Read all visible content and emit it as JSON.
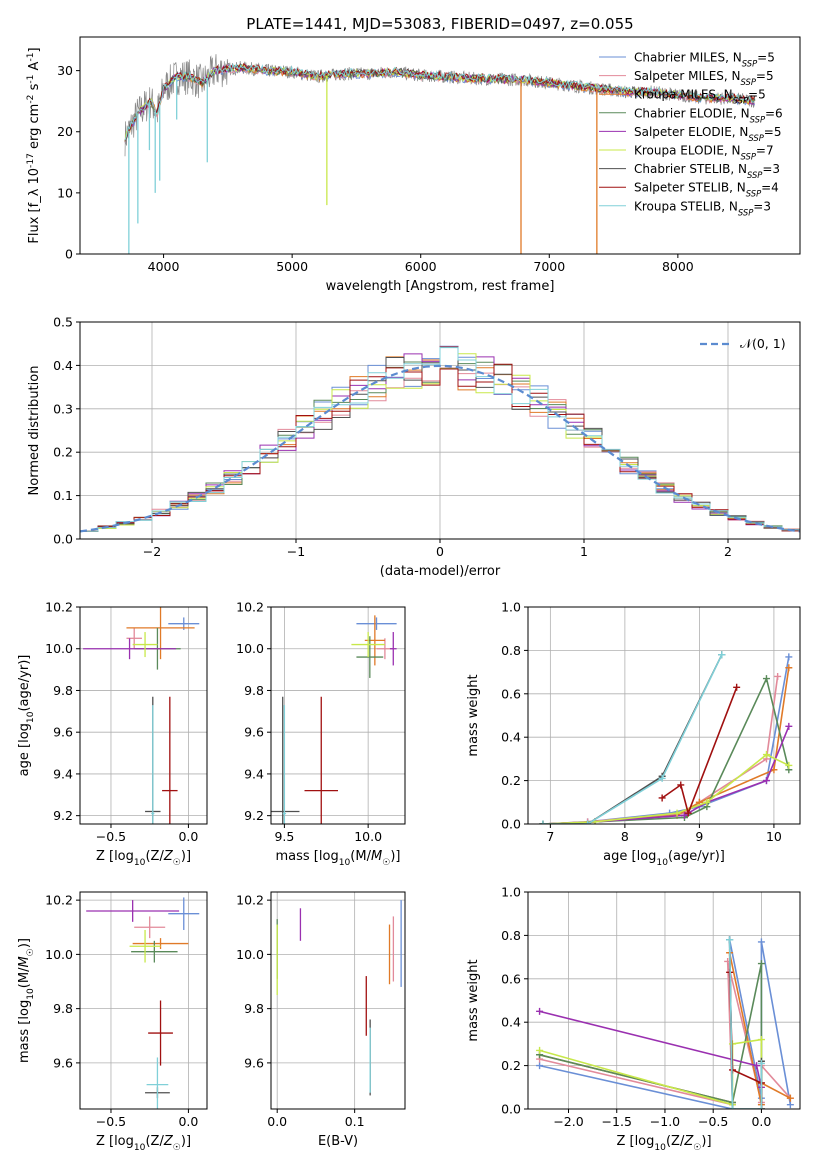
{
  "colors": [
    "#6a8fd6",
    "#e28a9a",
    "#e07a28",
    "#5a8a5a",
    "#9a30b0",
    "#c8e84a",
    "#505050",
    "#a01010",
    "#80d0d8"
  ],
  "chart_data": [
    {
      "type": "line",
      "title": "PLATE=1441, MJD=53083, FIBERID=0497, z=0.055",
      "xlabel": "wavelength [Angstrom, rest frame]",
      "ylabel": "Flux [f_λ 10^-17 erg cm^-2 s^-1 A^-1]",
      "xlim": [
        3350,
        8950
      ],
      "ylim": [
        0,
        35.5
      ],
      "xticks": [
        4000,
        5000,
        6000,
        7000,
        8000
      ],
      "yticks": [
        0,
        10,
        20,
        30
      ],
      "legend": "top-right",
      "series": [
        {
          "name": "Chabrier MILES, N_SSP=5"
        },
        {
          "name": "Salpeter MILES, N_SSP=5"
        },
        {
          "name": "Kroupa MILES, N_SSP=5"
        },
        {
          "name": "Chabrier ELODIE, N_SSP=6"
        },
        {
          "name": "Salpeter ELODIE, N_SSP=5"
        },
        {
          "name": "Kroupa ELODIE, N_SSP=7"
        },
        {
          "name": "Chabrier STELIB, N_SSP=3"
        },
        {
          "name": "Salpeter STELIB, N_SSP=4"
        },
        {
          "name": "Kroupa STELIB, N_SSP=3"
        }
      ],
      "spectrum_shape": [
        [
          3700,
          19
        ],
        [
          3800,
          23
        ],
        [
          3900,
          25
        ],
        [
          3950,
          23
        ],
        [
          4000,
          27
        ],
        [
          4100,
          29
        ],
        [
          4200,
          29
        ],
        [
          4300,
          28
        ],
        [
          4400,
          30
        ],
        [
          4600,
          30.5
        ],
        [
          4800,
          30
        ],
        [
          5000,
          29.8
        ],
        [
          5200,
          29
        ],
        [
          5400,
          29.5
        ],
        [
          5600,
          29.5
        ],
        [
          5800,
          29.8
        ],
        [
          6000,
          29.2
        ],
        [
          6200,
          29
        ],
        [
          6400,
          28.7
        ],
        [
          6600,
          28.6
        ],
        [
          6800,
          28.5
        ],
        [
          7000,
          28
        ],
        [
          7200,
          27.5
        ],
        [
          7400,
          27
        ],
        [
          7600,
          26.5
        ],
        [
          7800,
          26.5
        ],
        [
          8000,
          26
        ],
        [
          8200,
          25.5
        ],
        [
          8400,
          25.5
        ],
        [
          8600,
          25
        ]
      ],
      "absorption_lines": [
        [
          3730,
          0
        ],
        [
          3800,
          5
        ],
        [
          3890,
          17
        ],
        [
          3935,
          10
        ],
        [
          3970,
          12
        ],
        [
          4102,
          22
        ],
        [
          4340,
          15
        ],
        [
          5270,
          8
        ],
        [
          6780,
          0
        ],
        [
          7370,
          0
        ]
      ]
    },
    {
      "type": "step",
      "xlabel": "(data-model)/error",
      "ylabel": "Normed distribution",
      "xlim": [
        -2.5,
        2.5
      ],
      "ylim": [
        0,
        0.5
      ],
      "xticks": [
        -2,
        -1,
        0,
        1,
        2
      ],
      "yticks": [
        0.0,
        0.1,
        0.2,
        0.3,
        0.4,
        0.5
      ],
      "legend": "top-right",
      "reference_label": "𝒩(0, 1)",
      "bin_width": 0.125
    },
    {
      "type": "scatter",
      "xlabel": "Z [log10(Z/Z☉)]",
      "ylabel": "age  [log10(age/yr)]",
      "xlim": [
        -0.7,
        0.12
      ],
      "ylim": [
        9.16,
        10.2
      ],
      "xticks": [
        -0.5,
        0.0
      ],
      "yticks": [
        9.2,
        9.4,
        9.6,
        9.8,
        10.0,
        10.2
      ],
      "points": [
        {
          "x": -0.03,
          "y": 10.12,
          "xerr": 0.1,
          "yerr": 0.03
        },
        {
          "x": -0.35,
          "y": 10.05,
          "xerr": 0.05,
          "yerr": 0.05
        },
        {
          "x": -0.18,
          "y": 10.1,
          "xerr": 0.22,
          "yerr": 0.15
        },
        {
          "x": -0.2,
          "y": 10.0,
          "xerr": 0.15,
          "yerr": 0.1
        },
        {
          "x": -0.38,
          "y": 10.0,
          "xerr": 0.3,
          "yerr": 0.05
        },
        {
          "x": -0.28,
          "y": 10.02,
          "xerr": 0.08,
          "yerr": 0.06
        },
        {
          "x": -0.23,
          "y": 9.22,
          "xerr": 0.05,
          "yerr": 0.55
        },
        {
          "x": -0.12,
          "y": 9.32,
          "xerr": 0.05,
          "yerr": 0.45
        },
        {
          "x": -0.23,
          "y": 9.21,
          "xerr": 0.01,
          "yerr": 0.52
        }
      ]
    },
    {
      "type": "scatter",
      "xlabel": "mass [log10(M/M☉)]",
      "ylabel": "",
      "xlim": [
        9.42,
        10.22
      ],
      "ylim": [
        9.16,
        10.2
      ],
      "xticks": [
        9.5,
        10.0
      ],
      "yticks": [
        9.2,
        9.4,
        9.6,
        9.8,
        10.0,
        10.2
      ],
      "points": [
        {
          "x": 10.05,
          "y": 10.12,
          "xerr": 0.12,
          "yerr": 0.03
        },
        {
          "x": 10.1,
          "y": 10.0,
          "xerr": 0.05,
          "yerr": 0.05
        },
        {
          "x": 10.04,
          "y": 10.04,
          "xerr": 0.06,
          "yerr": 0.12
        },
        {
          "x": 10.01,
          "y": 9.96,
          "xerr": 0.08,
          "yerr": 0.1
        },
        {
          "x": 10.15,
          "y": 10.0,
          "xerr": 0.02,
          "yerr": 0.08
        },
        {
          "x": 10.0,
          "y": 10.02,
          "xerr": 0.1,
          "yerr": 0.06
        },
        {
          "x": 9.49,
          "y": 9.22,
          "xerr": 0.1,
          "yerr": 0.55
        },
        {
          "x": 9.72,
          "y": 9.32,
          "xerr": 0.1,
          "yerr": 0.45
        },
        {
          "x": 9.5,
          "y": 9.21,
          "xerr": 0.01,
          "yerr": 0.52
        }
      ]
    },
    {
      "type": "line",
      "xlabel": "age  [log10(age/yr)]",
      "ylabel": "mass weight",
      "xlim": [
        6.7,
        10.35
      ],
      "ylim": [
        0,
        1.0
      ],
      "xticks": [
        7,
        8,
        9,
        10
      ],
      "yticks": [
        0.0,
        0.2,
        0.4,
        0.6,
        0.8,
        1.0
      ],
      "series": [
        {
          "x": [
            6.9,
            7.5,
            8.6,
            9.0,
            9.9,
            10.2
          ],
          "y": [
            0.0,
            0.01,
            0.05,
            0.08,
            0.2,
            0.77
          ]
        },
        {
          "x": [
            6.9,
            7.5,
            8.8,
            9.0,
            9.9,
            10.05
          ],
          "y": [
            0.0,
            0.01,
            0.05,
            0.1,
            0.3,
            0.68
          ]
        },
        {
          "x": [
            6.9,
            7.6,
            8.7,
            9.0,
            10.0,
            10.2
          ],
          "y": [
            0.0,
            0.01,
            0.04,
            0.1,
            0.25,
            0.72
          ]
        },
        {
          "x": [
            6.9,
            7.6,
            8.8,
            9.1,
            9.9,
            10.2
          ],
          "y": [
            0.0,
            0.01,
            0.03,
            0.08,
            0.67,
            0.25
          ]
        },
        {
          "x": [
            6.9,
            7.6,
            8.8,
            9.1,
            9.9,
            10.2
          ],
          "y": [
            0.0,
            0.01,
            0.04,
            0.1,
            0.2,
            0.45
          ]
        },
        {
          "x": [
            6.9,
            7.6,
            8.7,
            9.1,
            9.9,
            10.2
          ],
          "y": [
            0.0,
            0.01,
            0.05,
            0.1,
            0.32,
            0.27
          ]
        },
        {
          "x": [
            6.9,
            7.5,
            8.5,
            9.3
          ],
          "y": [
            0.0,
            0.0,
            0.22,
            0.78
          ]
        },
        {
          "x": [
            8.5,
            8.75,
            8.85,
            9.5
          ],
          "y": [
            0.12,
            0.18,
            0.05,
            0.63
          ]
        },
        {
          "x": [
            6.9,
            7.5,
            8.5,
            9.3
          ],
          "y": [
            0.0,
            0.0,
            0.21,
            0.78
          ]
        }
      ]
    },
    {
      "type": "scatter",
      "xlabel": "Z [log10(Z/Z☉)]",
      "ylabel": "mass [log10(M/M☉)]",
      "xlim": [
        -0.7,
        0.12
      ],
      "ylim": [
        9.43,
        10.23
      ],
      "xticks": [
        -0.5,
        0.0
      ],
      "yticks": [
        9.6,
        9.8,
        10.0,
        10.2
      ],
      "points": [
        {
          "x": -0.03,
          "y": 10.15,
          "xerr": 0.1,
          "yerr": 0.06
        },
        {
          "x": -0.25,
          "y": 10.1,
          "xerr": 0.1,
          "yerr": 0.04
        },
        {
          "x": -0.18,
          "y": 10.04,
          "xerr": 0.18,
          "yerr": 0.02
        },
        {
          "x": -0.22,
          "y": 10.01,
          "xerr": 0.15,
          "yerr": 0.04
        },
        {
          "x": -0.36,
          "y": 10.16,
          "xerr": 0.3,
          "yerr": 0.04
        },
        {
          "x": -0.28,
          "y": 10.03,
          "xerr": 0.1,
          "yerr": 0.06
        },
        {
          "x": -0.2,
          "y": 9.49,
          "xerr": 0.08,
          "yerr": 0.02
        },
        {
          "x": -0.18,
          "y": 9.71,
          "xerr": 0.08,
          "yerr": 0.12
        },
        {
          "x": -0.2,
          "y": 9.52,
          "xerr": 0.07,
          "yerr": 0.1
        }
      ]
    },
    {
      "type": "scatter",
      "xlabel": "E(B-V)",
      "ylabel": "",
      "xlim": [
        -0.008,
        0.165
      ],
      "ylim": [
        9.43,
        10.23
      ],
      "xticks": [
        0.0,
        0.1
      ],
      "yticks": [
        9.6,
        9.8,
        10.0,
        10.2
      ],
      "points": [
        {
          "x": 0.16,
          "y": 10.04,
          "xerr": 0.0,
          "yerr": 0.16
        },
        {
          "x": 0.15,
          "y": 10.02,
          "xerr": 0.0,
          "yerr": 0.12
        },
        {
          "x": 0.145,
          "y": 10.0,
          "xerr": 0.0,
          "yerr": 0.11
        },
        {
          "x": 0.0,
          "y": 10.02,
          "xerr": 0.0,
          "yerr": 0.11
        },
        {
          "x": 0.03,
          "y": 10.11,
          "xerr": 0.0,
          "yerr": 0.06
        },
        {
          "x": 0.0,
          "y": 9.98,
          "xerr": 0.0,
          "yerr": 0.13
        },
        {
          "x": 0.12,
          "y": 9.62,
          "xerr": 0.0,
          "yerr": 0.14
        },
        {
          "x": 0.115,
          "y": 9.81,
          "xerr": 0.0,
          "yerr": 0.11
        },
        {
          "x": 0.12,
          "y": 9.61,
          "xerr": 0.0,
          "yerr": 0.12
        }
      ]
    },
    {
      "type": "line",
      "xlabel": "Z [log10(Z/Z☉)]",
      "ylabel": "mass weight",
      "xlim": [
        -2.42,
        0.4
      ],
      "ylim": [
        0,
        1.0
      ],
      "xticks": [
        -2.0,
        -1.5,
        -1.0,
        -0.5,
        0.0
      ],
      "yticks": [
        0.0,
        0.2,
        0.4,
        0.6,
        0.8,
        1.0
      ],
      "series": [
        {
          "x": [
            -2.3,
            -0.3,
            -0.33,
            0.0,
            0.0,
            0.3
          ],
          "y": [
            0.2,
            0.0,
            0.78,
            0.05,
            0.77,
            0.02
          ]
        },
        {
          "x": [
            -2.3,
            -0.3,
            -0.35,
            0.0,
            0.0,
            0.3
          ],
          "y": [
            0.23,
            0.02,
            0.68,
            0.03,
            0.2,
            0.05
          ]
        },
        {
          "x": [
            -2.3,
            -0.3,
            -0.33,
            0.0,
            0.0,
            0.3
          ],
          "y": [
            0.25,
            0.03,
            0.72,
            0.02,
            0.12,
            0.05
          ]
        },
        {
          "x": [
            -2.3,
            -0.3,
            0.0,
            0.0
          ],
          "y": [
            0.25,
            0.03,
            0.67,
            0.0
          ]
        },
        {
          "x": [
            -2.3,
            -0.05,
            0.0,
            0.0
          ],
          "y": [
            0.45,
            0.2,
            0.1,
            0.0
          ]
        },
        {
          "x": [
            -2.3,
            -0.3,
            -0.3,
            0.0,
            0.0
          ],
          "y": [
            0.27,
            0.02,
            0.3,
            0.32,
            0.0
          ]
        },
        {
          "x": [
            -0.33,
            -0.3,
            0.0,
            0.0
          ],
          "y": [
            0.78,
            0.0,
            0.0,
            0.22
          ]
        },
        {
          "x": [
            -0.33,
            -0.3,
            0.0,
            0.0
          ],
          "y": [
            0.63,
            0.18,
            0.12,
            0.0
          ]
        },
        {
          "x": [
            -0.33,
            -0.3,
            0.0,
            0.0
          ],
          "y": [
            0.78,
            0.0,
            0.0,
            0.21
          ]
        }
      ]
    }
  ]
}
